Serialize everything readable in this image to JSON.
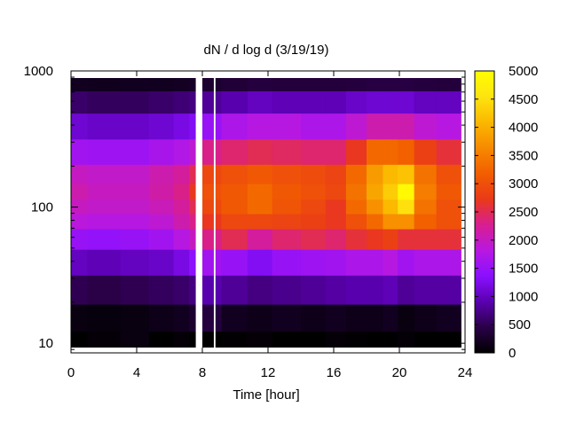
{
  "chart_data": {
    "type": "heatmap",
    "title": "dN / d log d (3/19/19)",
    "xlabel": "Time [hour]",
    "ylabel": "",
    "x_scale": "linear",
    "y_scale": "log",
    "xlim": [
      0,
      24
    ],
    "ylim": [
      8.5,
      1000
    ],
    "x_ticks": [
      0,
      4,
      8,
      12,
      16,
      20,
      24
    ],
    "y_ticks": [
      10,
      100,
      1000
    ],
    "colorbar": {
      "range": [
        0,
        5000
      ],
      "ticks": [
        0,
        500,
        1000,
        1500,
        2000,
        2500,
        3000,
        3500,
        4000,
        4500,
        5000
      ],
      "colormap": [
        "#000000",
        "#2a0048",
        "#5a00b0",
        "#8a10ff",
        "#b818e0",
        "#d81e90",
        "#ea3a18",
        "#f25e00",
        "#f78a00",
        "#fbb800",
        "#fde410",
        "#ffff00"
      ]
    },
    "data_gaps_hours": [
      [
        7.6,
        8.0
      ],
      [
        8.7,
        8.8
      ]
    ],
    "sample_cells": {
      "x": [
        0,
        2,
        4,
        5.5,
        7,
        7.4,
        8.3,
        10,
        11.5,
        13,
        15,
        16,
        17.5,
        18.5,
        19.5,
        20.3,
        21.5,
        23
      ],
      "y": [
        10,
        15,
        25,
        40,
        60,
        80,
        100,
        130,
        170,
        250,
        400,
        600,
        850
      ],
      "z": [
        [
          0,
          50,
          100,
          0,
          50,
          0,
          0,
          20,
          50,
          0,
          0,
          50,
          20,
          0,
          0,
          50,
          0,
          0
        ],
        [
          100,
          80,
          100,
          150,
          200,
          300,
          400,
          200,
          150,
          200,
          150,
          200,
          150,
          150,
          200,
          100,
          150,
          200
        ],
        [
          500,
          450,
          500,
          550,
          600,
          700,
          900,
          800,
          700,
          750,
          800,
          850,
          900,
          900,
          950,
          800,
          850,
          850
        ],
        [
          1000,
          950,
          1000,
          1050,
          1200,
          1400,
          1600,
          1500,
          1300,
          1500,
          1550,
          1600,
          1700,
          1700,
          1800,
          1600,
          1700,
          1700
        ],
        [
          1500,
          1450,
          1500,
          1600,
          1800,
          2000,
          2300,
          2500,
          2200,
          2400,
          2500,
          2400,
          2600,
          2700,
          2800,
          2600,
          2600,
          2600
        ],
        [
          1850,
          1800,
          1800,
          1900,
          2100,
          2300,
          2700,
          2900,
          2900,
          2850,
          2800,
          2700,
          3000,
          3300,
          3700,
          3700,
          3200,
          3000
        ],
        [
          2000,
          1950,
          1950,
          2050,
          2200,
          2500,
          2900,
          3100,
          3300,
          3050,
          2900,
          2700,
          3300,
          3700,
          4100,
          4500,
          3400,
          3000
        ],
        [
          2100,
          2000,
          2000,
          2150,
          2300,
          2700,
          3000,
          3100,
          3300,
          3100,
          3000,
          2900,
          3400,
          3900,
          4300,
          4900,
          3500,
          3100
        ],
        [
          2000,
          1950,
          1950,
          2100,
          2200,
          2500,
          2900,
          3000,
          3100,
          3000,
          2950,
          2850,
          3300,
          3800,
          4100,
          4200,
          3400,
          3000
        ],
        [
          1600,
          1550,
          1550,
          1650,
          1750,
          1900,
          2300,
          2400,
          2500,
          2450,
          2400,
          2400,
          2700,
          3300,
          3300,
          3200,
          2800,
          2600
        ],
        [
          1100,
          1050,
          1050,
          1100,
          1200,
          1300,
          1500,
          1700,
          1800,
          1800,
          1700,
          1700,
          1900,
          2100,
          2100,
          2100,
          1900,
          1800
        ],
        [
          600,
          550,
          550,
          600,
          650,
          700,
          800,
          900,
          1000,
          950,
          950,
          950,
          1050,
          1100,
          1100,
          1100,
          1000,
          1000
        ],
        [
          200,
          180,
          200,
          200,
          220,
          250,
          300,
          350,
          400,
          380,
          380,
          380,
          400,
          420,
          420,
          420,
          400,
          380
        ]
      ]
    }
  }
}
